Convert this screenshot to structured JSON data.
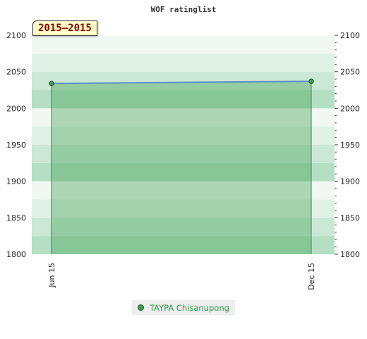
{
  "chart_data": {
    "type": "area",
    "title": "WOF ratinglist",
    "period": "2015–2015",
    "x": [
      "Jun 15",
      "Dec 15"
    ],
    "series": [
      {
        "name": "TAYPA Chisanupong",
        "values": [
          2034,
          2037
        ],
        "color": "#3e9d4e",
        "line_color": "#5b8fc9"
      }
    ],
    "ylim": [
      1800,
      2100
    ],
    "yticks": [
      1800,
      1850,
      1900,
      1950,
      2000,
      2050,
      2100
    ],
    "grid": true,
    "legend": "bottom-center"
  }
}
